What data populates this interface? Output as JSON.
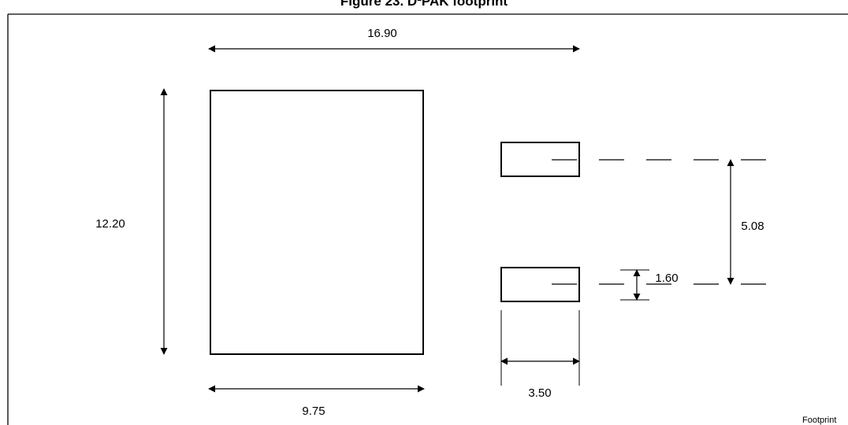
{
  "figure": {
    "title": "Figure 23. D²PAK footprint",
    "code": "Footprint"
  },
  "dimensions": {
    "overall_width": "16.90",
    "height": "12.20",
    "tab_width": "9.75",
    "pitch": "5.08",
    "lead_height": "1.60",
    "lead_width": "3.50"
  }
}
